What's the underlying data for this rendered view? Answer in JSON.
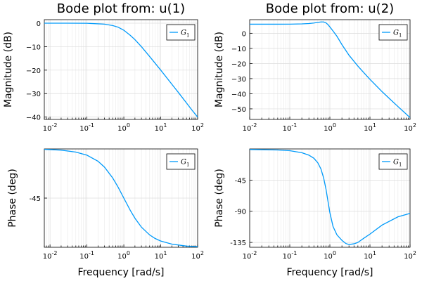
{
  "chart_data": [
    {
      "type": "line",
      "title": "Bode plot from: u(1)",
      "xlabel": "",
      "ylabel": "Magnitude (dB)",
      "xscale": "log",
      "xlim": [
        0.007,
        100
      ],
      "ylim": [
        -41,
        1.5
      ],
      "xticks": [
        0.01,
        0.1,
        1,
        10,
        100
      ],
      "xtick_labels": [
        {
          "base": "10",
          "exp": "-2"
        },
        {
          "base": "10",
          "exp": "-1"
        },
        {
          "base": "10",
          "exp": "0"
        },
        {
          "base": "10",
          "exp": "1"
        },
        {
          "base": "10",
          "exp": "2"
        }
      ],
      "yticks": [
        0,
        -10,
        -20,
        -30,
        -40
      ],
      "ytick_labels": [
        "0",
        "−10",
        "−20",
        "−30",
        "−40"
      ],
      "grid": true,
      "legend": "top-right",
      "series": [
        {
          "name": "G1",
          "color": "#009AFA",
          "x": [
            0.007,
            0.01,
            0.03,
            0.1,
            0.3,
            0.5,
            0.7,
            1,
            1.5,
            2,
            3,
            5,
            7,
            10,
            20,
            30,
            50,
            70,
            100
          ],
          "y": [
            0,
            0,
            0,
            -0.04,
            -0.4,
            -1.0,
            -1.7,
            -3.0,
            -5.2,
            -7.0,
            -10.0,
            -14.2,
            -17.0,
            -20.0,
            -26.0,
            -29.5,
            -34.0,
            -37.0,
            -40.0
          ]
        }
      ]
    },
    {
      "type": "line",
      "title": "Bode plot from: u(2)",
      "xlabel": "",
      "ylabel": "Magnitude (dB)",
      "xscale": "log",
      "xlim": [
        0.01,
        100
      ],
      "ylim": [
        -57,
        9
      ],
      "xticks": [
        0.01,
        0.1,
        1,
        10,
        100
      ],
      "xtick_labels": [
        {
          "base": "10",
          "exp": "-2"
        },
        {
          "base": "10",
          "exp": "-1"
        },
        {
          "base": "10",
          "exp": "0"
        },
        {
          "base": "10",
          "exp": "1"
        },
        {
          "base": "10",
          "exp": "2"
        }
      ],
      "yticks": [
        0,
        -10,
        -20,
        -30,
        -40,
        -50
      ],
      "ytick_labels": [
        "0",
        "−10",
        "−20",
        "−30",
        "−40",
        "−50"
      ],
      "grid": true,
      "legend": "top-right",
      "series": [
        {
          "name": "G1",
          "color": "#009AFA",
          "x": [
            0.01,
            0.05,
            0.1,
            0.2,
            0.3,
            0.4,
            0.5,
            0.6,
            0.7,
            0.8,
            0.9,
            1,
            1.2,
            1.5,
            2,
            3,
            5,
            7,
            10,
            20,
            30,
            50,
            70,
            100
          ],
          "y": [
            6.0,
            6.0,
            6.05,
            6.2,
            6.45,
            6.8,
            7.2,
            7.5,
            7.5,
            6.9,
            5.7,
            4.2,
            1.5,
            -2.0,
            -7.5,
            -14.5,
            -21.7,
            -26.0,
            -30.5,
            -38.6,
            -43.0,
            -48.5,
            -52.0,
            -55.8
          ]
        }
      ]
    },
    {
      "type": "line",
      "title": "",
      "xlabel": "Frequency [rad/s]",
      "ylabel": "Phase (deg)",
      "xscale": "log",
      "xlim": [
        0.007,
        100
      ],
      "ylim": [
        -90,
        0
      ],
      "xticks": [
        0.01,
        0.1,
        1,
        10,
        100
      ],
      "xtick_labels": [
        {
          "base": "10",
          "exp": "-2"
        },
        {
          "base": "10",
          "exp": "-1"
        },
        {
          "base": "10",
          "exp": "0"
        },
        {
          "base": "10",
          "exp": "1"
        },
        {
          "base": "10",
          "exp": "2"
        }
      ],
      "yticks": [
        -45
      ],
      "ytick_labels": [
        "-45"
      ],
      "grid": true,
      "legend": "top-right",
      "series": [
        {
          "name": "G1",
          "color": "#009AFA",
          "x": [
            0.007,
            0.01,
            0.02,
            0.05,
            0.1,
            0.2,
            0.3,
            0.5,
            0.7,
            1,
            1.5,
            2,
            3,
            5,
            7,
            10,
            20,
            50,
            100
          ],
          "y": [
            -0.4,
            -0.6,
            -1.1,
            -2.9,
            -5.7,
            -11.3,
            -16.7,
            -26.6,
            -35.0,
            -45.0,
            -56.3,
            -63.4,
            -71.6,
            -78.7,
            -81.9,
            -84.3,
            -87.1,
            -88.9,
            -89.4
          ]
        }
      ]
    },
    {
      "type": "line",
      "title": "",
      "xlabel": "Frequency [rad/s]",
      "ylabel": "Phase (deg)",
      "xscale": "log",
      "xlim": [
        0.01,
        100
      ],
      "ylim": [
        -142,
        0
      ],
      "xticks": [
        0.01,
        0.1,
        1,
        10,
        100
      ],
      "xtick_labels": [
        {
          "base": "10",
          "exp": "-2"
        },
        {
          "base": "10",
          "exp": "-1"
        },
        {
          "base": "10",
          "exp": "0"
        },
        {
          "base": "10",
          "exp": "1"
        },
        {
          "base": "10",
          "exp": "2"
        }
      ],
      "yticks": [
        -45,
        -90,
        -135
      ],
      "ytick_labels": [
        "-45",
        "-90",
        "-135"
      ],
      "grid": true,
      "legend": "top-right",
      "series": [
        {
          "name": "G1",
          "color": "#009AFA",
          "x": [
            0.01,
            0.05,
            0.1,
            0.2,
            0.3,
            0.4,
            0.5,
            0.6,
            0.7,
            0.8,
            0.9,
            1,
            1.2,
            1.5,
            2,
            2.5,
            3,
            4,
            5,
            7,
            10,
            20,
            50,
            100
          ],
          "y": [
            -0.8,
            -1.5,
            -2.5,
            -5.5,
            -9,
            -13.5,
            -20,
            -29,
            -42,
            -58,
            -76,
            -92,
            -112,
            -124,
            -132,
            -136.5,
            -138,
            -137,
            -135,
            -129,
            -123,
            -110,
            -98,
            -93
          ]
        }
      ]
    }
  ]
}
